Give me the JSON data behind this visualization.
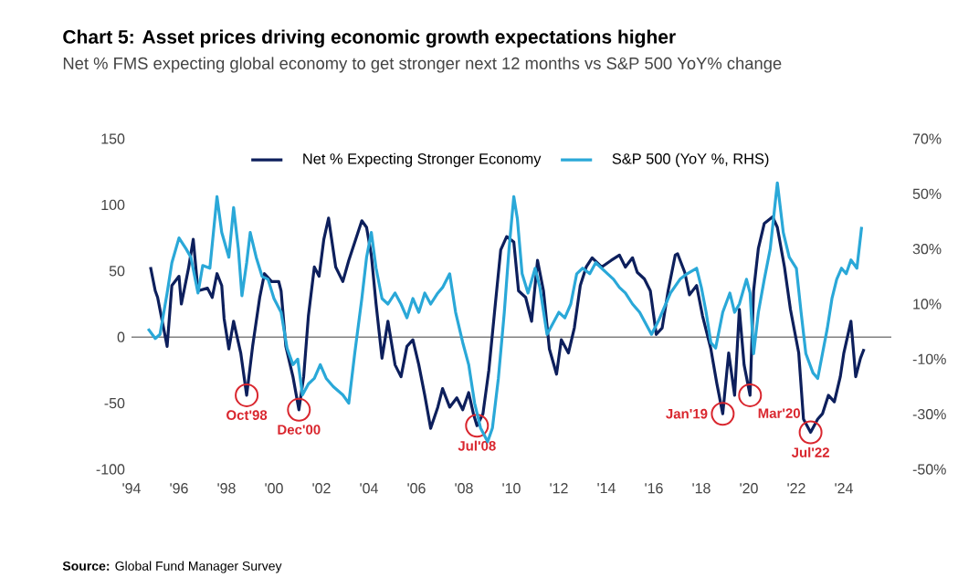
{
  "chart_data": {
    "type": "line",
    "title": "Chart 5: Asset prices driving economic growth expectations higher",
    "subtitle": "Net % FMS expecting global economy to get stronger next 12 months vs S&P 500 YoY% change",
    "xlim": [
      1994,
      2026
    ],
    "xticks": [
      {
        "value": 1994,
        "label": "'94"
      },
      {
        "value": 1996,
        "label": "'96"
      },
      {
        "value": 1998,
        "label": "'98"
      },
      {
        "value": 2000,
        "label": "'00"
      },
      {
        "value": 2002,
        "label": "'02"
      },
      {
        "value": 2004,
        "label": "'04"
      },
      {
        "value": 2006,
        "label": "'06"
      },
      {
        "value": 2008,
        "label": "'08"
      },
      {
        "value": 2010,
        "label": "'10"
      },
      {
        "value": 2012,
        "label": "'12"
      },
      {
        "value": 2014,
        "label": "'14"
      },
      {
        "value": 2016,
        "label": "'16"
      },
      {
        "value": 2018,
        "label": "'18"
      },
      {
        "value": 2020,
        "label": "'20"
      },
      {
        "value": 2022,
        "label": "'22"
      },
      {
        "value": 2024,
        "label": "'24"
      }
    ],
    "ylim": [
      -100,
      150
    ],
    "yticks": [
      -100,
      -50,
      0,
      50,
      100,
      150
    ],
    "y2lim": [
      -50,
      70
    ],
    "y2ticks": [
      {
        "value": -50,
        "label": "-50%"
      },
      {
        "value": -30,
        "label": "-30%"
      },
      {
        "value": -10,
        "label": "-10%"
      },
      {
        "value": 10,
        "label": "10%"
      },
      {
        "value": 30,
        "label": "30%"
      },
      {
        "value": 50,
        "label": "50%"
      },
      {
        "value": 70,
        "label": "70%"
      }
    ],
    "legend": "top",
    "ref_lines": [
      {
        "axis": "y",
        "value": 0,
        "color": "#808080"
      }
    ],
    "series": [
      {
        "name": "Net % Expecting Stronger Economy",
        "color": "#0d1f5c",
        "x": [
          1994.8,
          1995.0,
          1995.1,
          1995.5,
          1995.7,
          1996.0,
          1996.1,
          1996.4,
          1996.6,
          1996.8,
          1997.2,
          1997.4,
          1997.6,
          1997.8,
          1997.9,
          1998.1,
          1998.3,
          1998.6,
          1998.85,
          1999.1,
          1999.4,
          1999.6,
          1999.9,
          2000.2,
          2000.3,
          2000.5,
          2000.8,
          2001.05,
          2001.25,
          2001.45,
          2001.7,
          2001.9,
          2002.1,
          2002.3,
          2002.6,
          2002.9,
          2003.15,
          2003.7,
          2003.9,
          2004.1,
          2004.3,
          2004.55,
          2004.8,
          2005.1,
          2005.35,
          2005.6,
          2005.85,
          2006.1,
          2006.35,
          2006.6,
          2006.9,
          2007.1,
          2007.4,
          2007.7,
          2007.95,
          2008.2,
          2008.4,
          2008.55,
          2008.8,
          2009.05,
          2009.3,
          2009.55,
          2009.8,
          2010.1,
          2010.3,
          2010.6,
          2010.85,
          2011.1,
          2011.35,
          2011.6,
          2011.9,
          2012.1,
          2012.4,
          2012.65,
          2012.9,
          2013.15,
          2013.4,
          2013.8,
          2014.2,
          2014.55,
          2014.8,
          2015.1,
          2015.3,
          2015.6,
          2015.85,
          2016.1,
          2016.35,
          2016.6,
          2016.9,
          2017.0,
          2017.3,
          2017.5,
          2017.8,
          2018.05,
          2018.4,
          2018.65,
          2018.9,
          2019.15,
          2019.4,
          2019.6,
          2019.8,
          2020.05,
          2020.2,
          2020.4,
          2020.65,
          2021.0,
          2021.2,
          2021.5,
          2021.75,
          2022.1,
          2022.3,
          2022.6,
          2022.9,
          2023.1,
          2023.35,
          2023.6,
          2023.85,
          2024.0,
          2024.3,
          2024.5,
          2024.7,
          2024.85
        ],
        "values": [
          53,
          35,
          30,
          -7,
          39,
          46,
          25,
          52,
          74,
          35,
          37,
          30,
          48,
          39,
          14,
          -9,
          12,
          -12,
          -44,
          -7,
          30,
          48,
          42,
          42,
          35,
          -7,
          -30,
          -55,
          -30,
          16,
          53,
          46,
          74,
          90,
          53,
          42,
          58,
          88,
          83,
          62,
          25,
          -16,
          12,
          -21,
          -30,
          -7,
          -2,
          -21,
          -44,
          -69,
          -53,
          -39,
          -53,
          -46,
          -55,
          -42,
          -58,
          -67,
          -58,
          -25,
          21,
          66,
          76,
          72,
          35,
          30,
          12,
          58,
          35,
          -9,
          -28,
          -2,
          -12,
          7,
          39,
          53,
          60,
          53,
          58,
          62,
          53,
          60,
          49,
          44,
          35,
          2,
          7,
          35,
          62,
          63,
          49,
          32,
          39,
          16,
          -9,
          -35,
          -58,
          -12,
          -44,
          21,
          -21,
          -44,
          35,
          67,
          86,
          91,
          83,
          53,
          21,
          -12,
          -62,
          -72,
          -62,
          -58,
          -44,
          -49,
          -30,
          -12,
          12,
          -30,
          -16,
          -9
        ]
      },
      {
        "name": "S&P 500 (YoY %, RHS)",
        "color": "#2aa8d8",
        "axis": "y2",
        "x": [
          1994.7,
          1995.0,
          1995.2,
          1995.5,
          1995.7,
          1996.0,
          1996.3,
          1996.5,
          1996.8,
          1997.0,
          1997.3,
          1997.6,
          1997.8,
          1998.1,
          1998.3,
          1998.5,
          1998.65,
          1998.85,
          1999.0,
          1999.25,
          1999.5,
          1999.75,
          2000.0,
          2000.3,
          2000.55,
          2000.8,
          2001.0,
          2001.2,
          2001.45,
          2001.7,
          2001.95,
          2002.2,
          2002.5,
          2002.9,
          2003.15,
          2003.4,
          2003.7,
          2003.9,
          2004.1,
          2004.3,
          2004.55,
          2004.8,
          2005.1,
          2005.35,
          2005.6,
          2005.85,
          2006.1,
          2006.35,
          2006.6,
          2006.9,
          2007.1,
          2007.4,
          2007.65,
          2007.95,
          2008.2,
          2008.45,
          2008.7,
          2009.0,
          2009.2,
          2009.45,
          2009.7,
          2009.9,
          2010.1,
          2010.25,
          2010.45,
          2010.7,
          2011.0,
          2011.2,
          2011.5,
          2011.75,
          2012.0,
          2012.25,
          2012.5,
          2012.75,
          2013.0,
          2013.3,
          2013.55,
          2013.8,
          2014.05,
          2014.3,
          2014.55,
          2014.8,
          2015.1,
          2015.4,
          2015.65,
          2015.9,
          2016.2,
          2016.5,
          2016.7,
          2017.1,
          2017.4,
          2017.8,
          2018.0,
          2018.2,
          2018.4,
          2018.6,
          2018.9,
          2019.2,
          2019.4,
          2019.6,
          2019.9,
          2020.05,
          2020.2,
          2020.4,
          2020.65,
          2020.9,
          2021.2,
          2021.45,
          2021.7,
          2022.0,
          2022.2,
          2022.4,
          2022.7,
          2022.9,
          2023.1,
          2023.3,
          2023.5,
          2023.7,
          2023.9,
          2024.1,
          2024.3,
          2024.55,
          2024.75
        ],
        "values": [
          1,
          -2.5,
          -1,
          14,
          25,
          34,
          30,
          27,
          14,
          24,
          23,
          49,
          36,
          27,
          45,
          30,
          13,
          25,
          36,
          27,
          20,
          19,
          12,
          7,
          -6,
          -12,
          -10,
          -23,
          -19,
          -17,
          -12,
          -17,
          -20,
          -23,
          -26,
          -8,
          12,
          27,
          36,
          23,
          12,
          10,
          14,
          10,
          5,
          12,
          7,
          14,
          10,
          14,
          16,
          21,
          7,
          -4,
          -12,
          -26,
          -35,
          -40,
          -35,
          -17,
          7,
          30,
          49,
          41,
          21,
          14,
          23,
          16,
          -1,
          3,
          7,
          5,
          10,
          21,
          23,
          21,
          25,
          23,
          21,
          19,
          16,
          14,
          10,
          7,
          3,
          -1,
          4,
          10,
          14,
          19,
          21,
          23,
          16,
          7,
          -4,
          -6,
          7,
          14,
          7,
          10,
          19,
          14,
          -8,
          7,
          19,
          30,
          54,
          36,
          27,
          23,
          7,
          -8,
          -15,
          -17,
          -8,
          1,
          12,
          19,
          23,
          21,
          26,
          23,
          38
        ]
      }
    ],
    "annotations": [
      {
        "text": "Oct'98",
        "x": 1998.85,
        "y": -44
      },
      {
        "text": "Dec'00",
        "x": 2001.05,
        "y": -55
      },
      {
        "text": "Jul'08",
        "x": 2008.55,
        "y": -67
      },
      {
        "text": "Jan'19",
        "x": 2018.9,
        "y": -58
      },
      {
        "text": "Mar'20",
        "x": 2020.05,
        "y": -44
      },
      {
        "text": "Jul'22",
        "x": 2022.6,
        "y": -72
      },
      "**Source:** Global Fund Manager Survey"
    ]
  }
}
